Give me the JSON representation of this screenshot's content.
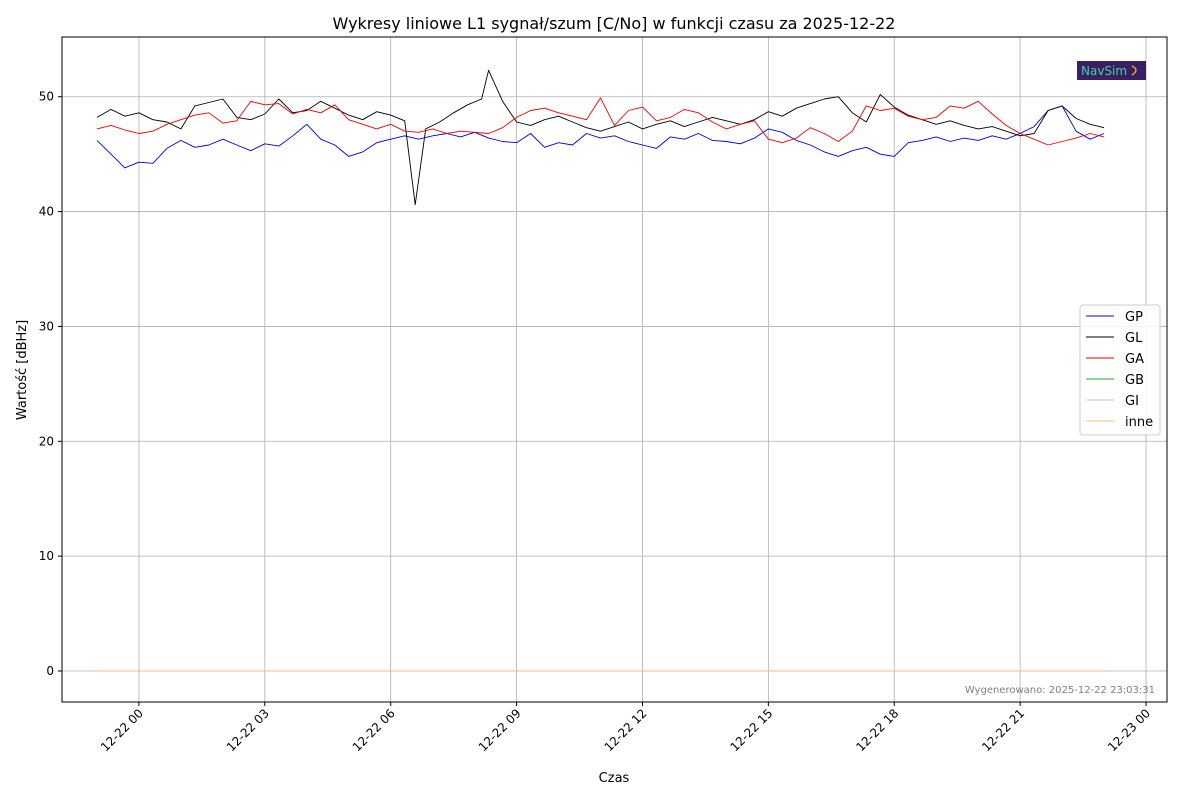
{
  "chart_data": {
    "type": "line",
    "title": "Wykresy liniowe L1 sygnał/szum [C/No] w funkcji czasu za 2025-12-22",
    "xlabel": "Czas",
    "ylabel": "Wartość [dBHz]",
    "footnote": "Wygenerowano: 2025-12-22 23:03:31",
    "logo_text": "NavSim",
    "xlim": [
      "2025-12-21 22:10",
      "2025-12-23 00:30"
    ],
    "ylim": [
      -2.7,
      55.2
    ],
    "x_ticks": [
      {
        "x": "2025-12-22 00:00",
        "label": "12-22 00"
      },
      {
        "x": "2025-12-22 03:00",
        "label": "12-22 03"
      },
      {
        "x": "2025-12-22 06:00",
        "label": "12-22 06"
      },
      {
        "x": "2025-12-22 09:00",
        "label": "12-22 09"
      },
      {
        "x": "2025-12-22 12:00",
        "label": "12-22 12"
      },
      {
        "x": "2025-12-22 15:00",
        "label": "12-22 15"
      },
      {
        "x": "2025-12-22 18:00",
        "label": "12-22 18"
      },
      {
        "x": "2025-12-22 21:00",
        "label": "12-22 21"
      },
      {
        "x": "2025-12-23 00:00",
        "label": "12-23 00"
      }
    ],
    "y_ticks": [
      0,
      10,
      20,
      30,
      40,
      50
    ],
    "grid": true,
    "legend_position": "center-right",
    "series": [
      {
        "name": "GP",
        "color": "#0000dd",
        "points": [
          [
            "2025-12-21 23:00",
            46.2
          ],
          [
            "2025-12-21 23:20",
            45.0
          ],
          [
            "2025-12-21 23:40",
            43.8
          ],
          [
            "2025-12-22 00:00",
            44.3
          ],
          [
            "2025-12-22 00:20",
            44.2
          ],
          [
            "2025-12-22 00:40",
            45.5
          ],
          [
            "2025-12-22 01:00",
            46.2
          ],
          [
            "2025-12-22 01:20",
            45.6
          ],
          [
            "2025-12-22 01:40",
            45.8
          ],
          [
            "2025-12-22 02:00",
            46.3
          ],
          [
            "2025-12-22 02:20",
            45.8
          ],
          [
            "2025-12-22 02:40",
            45.3
          ],
          [
            "2025-12-22 03:00",
            45.9
          ],
          [
            "2025-12-22 03:20",
            45.7
          ],
          [
            "2025-12-22 03:40",
            46.6
          ],
          [
            "2025-12-22 04:00",
            47.6
          ],
          [
            "2025-12-22 04:20",
            46.3
          ],
          [
            "2025-12-22 04:40",
            45.8
          ],
          [
            "2025-12-22 05:00",
            44.8
          ],
          [
            "2025-12-22 05:20",
            45.2
          ],
          [
            "2025-12-22 05:40",
            46.0
          ],
          [
            "2025-12-22 06:00",
            46.3
          ],
          [
            "2025-12-22 06:20",
            46.6
          ],
          [
            "2025-12-22 06:40",
            46.3
          ],
          [
            "2025-12-22 07:00",
            46.6
          ],
          [
            "2025-12-22 07:20",
            46.8
          ],
          [
            "2025-12-22 07:40",
            46.5
          ],
          [
            "2025-12-22 08:00",
            46.9
          ],
          [
            "2025-12-22 08:20",
            46.4
          ],
          [
            "2025-12-22 08:40",
            46.1
          ],
          [
            "2025-12-22 09:00",
            46.0
          ],
          [
            "2025-12-22 09:20",
            46.8
          ],
          [
            "2025-12-22 09:40",
            45.6
          ],
          [
            "2025-12-22 10:00",
            46.0
          ],
          [
            "2025-12-22 10:20",
            45.8
          ],
          [
            "2025-12-22 10:40",
            46.8
          ],
          [
            "2025-12-22 11:00",
            46.4
          ],
          [
            "2025-12-22 11:20",
            46.6
          ],
          [
            "2025-12-22 11:40",
            46.1
          ],
          [
            "2025-12-22 12:00",
            45.8
          ],
          [
            "2025-12-22 12:20",
            45.5
          ],
          [
            "2025-12-22 12:40",
            46.5
          ],
          [
            "2025-12-22 13:00",
            46.3
          ],
          [
            "2025-12-22 13:20",
            46.8
          ],
          [
            "2025-12-22 13:40",
            46.2
          ],
          [
            "2025-12-22 14:00",
            46.1
          ],
          [
            "2025-12-22 14:20",
            45.9
          ],
          [
            "2025-12-22 14:40",
            46.4
          ],
          [
            "2025-12-22 15:00",
            47.2
          ],
          [
            "2025-12-22 15:20",
            46.9
          ],
          [
            "2025-12-22 15:40",
            46.2
          ],
          [
            "2025-12-22 16:00",
            45.8
          ],
          [
            "2025-12-22 16:20",
            45.2
          ],
          [
            "2025-12-22 16:40",
            44.8
          ],
          [
            "2025-12-22 17:00",
            45.3
          ],
          [
            "2025-12-22 17:20",
            45.6
          ],
          [
            "2025-12-22 17:40",
            45.0
          ],
          [
            "2025-12-22 18:00",
            44.8
          ],
          [
            "2025-12-22 18:20",
            46.0
          ],
          [
            "2025-12-22 18:40",
            46.2
          ],
          [
            "2025-12-22 19:00",
            46.5
          ],
          [
            "2025-12-22 19:20",
            46.1
          ],
          [
            "2025-12-22 19:40",
            46.4
          ],
          [
            "2025-12-22 20:00",
            46.2
          ],
          [
            "2025-12-22 20:20",
            46.6
          ],
          [
            "2025-12-22 20:40",
            46.3
          ],
          [
            "2025-12-22 21:00",
            46.8
          ],
          [
            "2025-12-22 21:20",
            47.4
          ],
          [
            "2025-12-22 21:40",
            48.8
          ],
          [
            "2025-12-22 22:00",
            49.2
          ],
          [
            "2025-12-22 22:20",
            47.0
          ],
          [
            "2025-12-22 22:40",
            46.3
          ],
          [
            "2025-12-22 23:00",
            46.8
          ]
        ]
      },
      {
        "name": "GL",
        "color": "#000000",
        "points": [
          [
            "2025-12-21 23:00",
            48.2
          ],
          [
            "2025-12-21 23:20",
            48.9
          ],
          [
            "2025-12-21 23:40",
            48.3
          ],
          [
            "2025-12-22 00:00",
            48.6
          ],
          [
            "2025-12-22 00:20",
            48.0
          ],
          [
            "2025-12-22 00:40",
            47.8
          ],
          [
            "2025-12-22 01:00",
            47.2
          ],
          [
            "2025-12-22 01:20",
            49.2
          ],
          [
            "2025-12-22 01:40",
            49.5
          ],
          [
            "2025-12-22 02:00",
            49.8
          ],
          [
            "2025-12-22 02:20",
            48.2
          ],
          [
            "2025-12-22 02:40",
            48.0
          ],
          [
            "2025-12-22 03:00",
            48.5
          ],
          [
            "2025-12-22 03:20",
            49.8
          ],
          [
            "2025-12-22 03:40",
            48.6
          ],
          [
            "2025-12-22 04:00",
            48.8
          ],
          [
            "2025-12-22 04:20",
            49.6
          ],
          [
            "2025-12-22 04:40",
            49.0
          ],
          [
            "2025-12-22 05:00",
            48.4
          ],
          [
            "2025-12-22 05:20",
            48.0
          ],
          [
            "2025-12-22 05:40",
            48.7
          ],
          [
            "2025-12-22 06:00",
            48.4
          ],
          [
            "2025-12-22 06:20",
            47.9
          ],
          [
            "2025-12-22 06:35",
            40.6
          ],
          [
            "2025-12-22 06:50",
            47.2
          ],
          [
            "2025-12-22 07:10",
            47.8
          ],
          [
            "2025-12-22 07:30",
            48.6
          ],
          [
            "2025-12-22 07:50",
            49.3
          ],
          [
            "2025-12-22 08:10",
            49.8
          ],
          [
            "2025-12-22 08:20",
            52.3
          ],
          [
            "2025-12-22 08:40",
            49.6
          ],
          [
            "2025-12-22 09:00",
            47.8
          ],
          [
            "2025-12-22 09:20",
            47.5
          ],
          [
            "2025-12-22 09:40",
            48.0
          ],
          [
            "2025-12-22 10:00",
            48.3
          ],
          [
            "2025-12-22 10:20",
            47.8
          ],
          [
            "2025-12-22 10:40",
            47.3
          ],
          [
            "2025-12-22 11:00",
            47.0
          ],
          [
            "2025-12-22 11:20",
            47.4
          ],
          [
            "2025-12-22 11:40",
            47.8
          ],
          [
            "2025-12-22 12:00",
            47.2
          ],
          [
            "2025-12-22 12:20",
            47.6
          ],
          [
            "2025-12-22 12:40",
            47.9
          ],
          [
            "2025-12-22 13:00",
            47.4
          ],
          [
            "2025-12-22 13:20",
            47.8
          ],
          [
            "2025-12-22 13:40",
            48.2
          ],
          [
            "2025-12-22 14:00",
            47.9
          ],
          [
            "2025-12-22 14:20",
            47.6
          ],
          [
            "2025-12-22 14:40",
            48.0
          ],
          [
            "2025-12-22 15:00",
            48.7
          ],
          [
            "2025-12-22 15:20",
            48.3
          ],
          [
            "2025-12-22 15:40",
            49.0
          ],
          [
            "2025-12-22 16:00",
            49.4
          ],
          [
            "2025-12-22 16:20",
            49.8
          ],
          [
            "2025-12-22 16:40",
            50.0
          ],
          [
            "2025-12-22 17:00",
            48.6
          ],
          [
            "2025-12-22 17:20",
            47.8
          ],
          [
            "2025-12-22 17:40",
            50.2
          ],
          [
            "2025-12-22 18:00",
            49.1
          ],
          [
            "2025-12-22 18:20",
            48.4
          ],
          [
            "2025-12-22 18:40",
            48.0
          ],
          [
            "2025-12-22 19:00",
            47.6
          ],
          [
            "2025-12-22 19:20",
            47.9
          ],
          [
            "2025-12-22 19:40",
            47.5
          ],
          [
            "2025-12-22 20:00",
            47.2
          ],
          [
            "2025-12-22 20:20",
            47.4
          ],
          [
            "2025-12-22 20:40",
            47.0
          ],
          [
            "2025-12-22 21:00",
            46.6
          ],
          [
            "2025-12-22 21:20",
            46.8
          ],
          [
            "2025-12-22 21:40",
            48.8
          ],
          [
            "2025-12-22 22:00",
            49.2
          ],
          [
            "2025-12-22 22:20",
            48.1
          ],
          [
            "2025-12-22 22:40",
            47.6
          ],
          [
            "2025-12-22 23:00",
            47.3
          ]
        ]
      },
      {
        "name": "GA",
        "color": "#ee0000",
        "points": [
          [
            "2025-12-21 23:00",
            47.2
          ],
          [
            "2025-12-21 23:20",
            47.5
          ],
          [
            "2025-12-21 23:40",
            47.1
          ],
          [
            "2025-12-22 00:00",
            46.8
          ],
          [
            "2025-12-22 00:20",
            47.0
          ],
          [
            "2025-12-22 00:40",
            47.6
          ],
          [
            "2025-12-22 01:00",
            48.0
          ],
          [
            "2025-12-22 01:20",
            48.4
          ],
          [
            "2025-12-22 01:40",
            48.6
          ],
          [
            "2025-12-22 02:00",
            47.7
          ],
          [
            "2025-12-22 02:20",
            47.9
          ],
          [
            "2025-12-22 02:40",
            49.6
          ],
          [
            "2025-12-22 03:00",
            49.3
          ],
          [
            "2025-12-22 03:20",
            49.4
          ],
          [
            "2025-12-22 03:40",
            48.5
          ],
          [
            "2025-12-22 04:00",
            48.9
          ],
          [
            "2025-12-22 04:20",
            48.6
          ],
          [
            "2025-12-22 04:40",
            49.3
          ],
          [
            "2025-12-22 05:00",
            48.0
          ],
          [
            "2025-12-22 05:20",
            47.6
          ],
          [
            "2025-12-22 05:40",
            47.2
          ],
          [
            "2025-12-22 06:00",
            47.6
          ],
          [
            "2025-12-22 06:20",
            47.0
          ],
          [
            "2025-12-22 06:40",
            46.9
          ],
          [
            "2025-12-22 07:00",
            47.2
          ],
          [
            "2025-12-22 07:20",
            46.8
          ],
          [
            "2025-12-22 07:40",
            47.0
          ],
          [
            "2025-12-22 08:00",
            46.9
          ],
          [
            "2025-12-22 08:20",
            46.8
          ],
          [
            "2025-12-22 08:40",
            47.3
          ],
          [
            "2025-12-22 09:00",
            48.2
          ],
          [
            "2025-12-22 09:20",
            48.8
          ],
          [
            "2025-12-22 09:40",
            49.0
          ],
          [
            "2025-12-22 10:00",
            48.6
          ],
          [
            "2025-12-22 10:20",
            48.3
          ],
          [
            "2025-12-22 10:40",
            48.0
          ],
          [
            "2025-12-22 11:00",
            49.9
          ],
          [
            "2025-12-22 11:20",
            47.5
          ],
          [
            "2025-12-22 11:40",
            48.8
          ],
          [
            "2025-12-22 12:00",
            49.1
          ],
          [
            "2025-12-22 12:20",
            47.9
          ],
          [
            "2025-12-22 12:40",
            48.2
          ],
          [
            "2025-12-22 13:00",
            48.9
          ],
          [
            "2025-12-22 13:20",
            48.6
          ],
          [
            "2025-12-22 13:40",
            47.8
          ],
          [
            "2025-12-22 14:00",
            47.2
          ],
          [
            "2025-12-22 14:20",
            47.6
          ],
          [
            "2025-12-22 14:40",
            47.9
          ],
          [
            "2025-12-22 15:00",
            46.3
          ],
          [
            "2025-12-22 15:20",
            46.0
          ],
          [
            "2025-12-22 15:40",
            46.4
          ],
          [
            "2025-12-22 16:00",
            47.3
          ],
          [
            "2025-12-22 16:20",
            46.8
          ],
          [
            "2025-12-22 16:40",
            46.1
          ],
          [
            "2025-12-22 17:00",
            47.0
          ],
          [
            "2025-12-22 17:20",
            49.2
          ],
          [
            "2025-12-22 17:40",
            48.8
          ],
          [
            "2025-12-22 18:00",
            49.0
          ],
          [
            "2025-12-22 18:20",
            48.3
          ],
          [
            "2025-12-22 18:40",
            48.0
          ],
          [
            "2025-12-22 19:00",
            48.2
          ],
          [
            "2025-12-22 19:20",
            49.2
          ],
          [
            "2025-12-22 19:40",
            49.0
          ],
          [
            "2025-12-22 20:00",
            49.6
          ],
          [
            "2025-12-22 20:20",
            48.5
          ],
          [
            "2025-12-22 20:40",
            47.5
          ],
          [
            "2025-12-22 21:00",
            46.8
          ],
          [
            "2025-12-22 21:20",
            46.3
          ],
          [
            "2025-12-22 21:40",
            45.8
          ],
          [
            "2025-12-22 22:00",
            46.1
          ],
          [
            "2025-12-22 22:20",
            46.4
          ],
          [
            "2025-12-22 22:40",
            46.8
          ],
          [
            "2025-12-22 23:00",
            46.5
          ]
        ]
      },
      {
        "name": "GB",
        "color": "#2ca02c",
        "points": [
          [
            "2025-12-21 23:00",
            0
          ],
          [
            "2025-12-22 23:00",
            0
          ]
        ]
      },
      {
        "name": "GI",
        "color": "#aec7e8",
        "points": [
          [
            "2025-12-21 23:00",
            0
          ],
          [
            "2025-12-22 23:00",
            0
          ]
        ]
      },
      {
        "name": "inne",
        "color": "#ffbb78",
        "points": [
          [
            "2025-12-21 23:00",
            0
          ],
          [
            "2025-12-22 23:00",
            0
          ]
        ]
      }
    ]
  }
}
